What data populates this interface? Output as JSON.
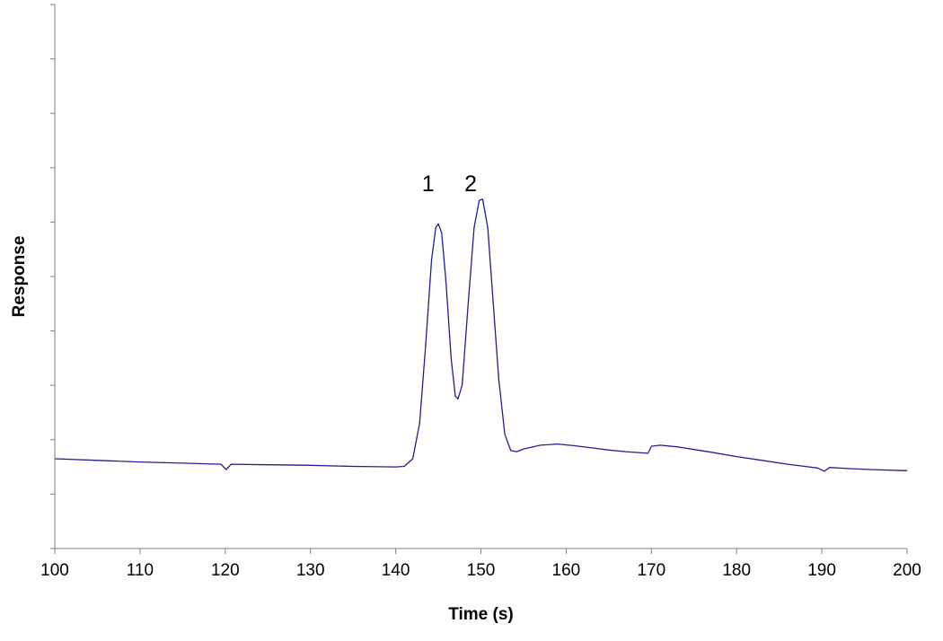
{
  "chart_data": {
    "type": "line",
    "title": "",
    "xlabel": "Time (s)",
    "ylabel": "Response",
    "xlim": [
      100,
      200
    ],
    "ylim": [
      0,
      10
    ],
    "xticks": [
      "100",
      "110",
      "120",
      "130",
      "140",
      "150",
      "160",
      "170",
      "180",
      "190",
      "200"
    ],
    "yticks_labeled": false,
    "grid": false,
    "line_color": "#1f1f8f",
    "series": [
      {
        "points": [
          [
            100.0,
            1.65
          ],
          [
            105,
            1.62
          ],
          [
            110,
            1.59
          ],
          [
            115,
            1.57
          ],
          [
            119.5,
            1.55
          ],
          [
            120.1,
            1.45
          ],
          [
            120.7,
            1.55
          ],
          [
            125,
            1.54
          ],
          [
            130,
            1.53
          ],
          [
            135,
            1.51
          ],
          [
            140,
            1.5
          ],
          [
            141,
            1.51
          ],
          [
            142,
            1.65
          ],
          [
            142.8,
            2.3
          ],
          [
            143.5,
            3.7
          ],
          [
            144.2,
            5.3
          ],
          [
            144.7,
            5.9
          ],
          [
            145.0,
            5.97
          ],
          [
            145.4,
            5.8
          ],
          [
            145.9,
            4.9
          ],
          [
            146.5,
            3.5
          ],
          [
            147.0,
            2.8
          ],
          [
            147.3,
            2.75
          ],
          [
            147.8,
            3.0
          ],
          [
            148.5,
            4.5
          ],
          [
            149.2,
            5.9
          ],
          [
            149.8,
            6.4
          ],
          [
            150.2,
            6.42
          ],
          [
            150.8,
            5.9
          ],
          [
            151.4,
            4.6
          ],
          [
            152.1,
            3.1
          ],
          [
            152.8,
            2.1
          ],
          [
            153.5,
            1.8
          ],
          [
            154.2,
            1.78
          ],
          [
            155,
            1.83
          ],
          [
            157,
            1.9
          ],
          [
            159,
            1.92
          ],
          [
            161,
            1.89
          ],
          [
            163,
            1.85
          ],
          [
            165,
            1.81
          ],
          [
            167,
            1.78
          ],
          [
            169.6,
            1.75
          ],
          [
            170.0,
            1.88
          ],
          [
            171,
            1.9
          ],
          [
            173,
            1.87
          ],
          [
            175,
            1.82
          ],
          [
            177,
            1.77
          ],
          [
            180,
            1.69
          ],
          [
            183,
            1.62
          ],
          [
            186,
            1.55
          ],
          [
            189.5,
            1.48
          ],
          [
            190.3,
            1.42
          ],
          [
            190.9,
            1.49
          ],
          [
            193,
            1.47
          ],
          [
            196,
            1.45
          ],
          [
            200,
            1.43
          ]
        ]
      }
    ],
    "annotations": [
      {
        "text": "1",
        "x": 143.8,
        "y": 6.7
      },
      {
        "text": "2",
        "x": 148.8,
        "y": 6.7
      }
    ]
  }
}
